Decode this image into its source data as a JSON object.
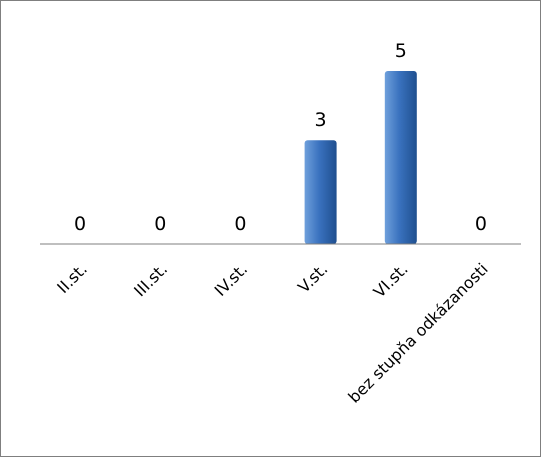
{
  "chart_data": {
    "type": "bar",
    "categories": [
      "II.st.",
      "III.st.",
      "IV.st.",
      "V.st.",
      "VI.st.",
      "bez stupňa odkázanosti"
    ],
    "values": [
      0,
      0,
      0,
      3,
      5,
      0
    ],
    "data_labels": [
      "0",
      "0",
      "0",
      "3",
      "5",
      "0"
    ],
    "title": "",
    "xlabel": "",
    "ylabel": "",
    "ylim": [
      0,
      5
    ],
    "grid": false,
    "legend": "none",
    "colors": {
      "bar_light": "#6fa0dc",
      "bar_mid": "#3a72bf",
      "bar_dark": "#1f4f8f",
      "axis": "#7f7f7f",
      "text": "#000000",
      "frame": "#7f7f7f"
    }
  }
}
